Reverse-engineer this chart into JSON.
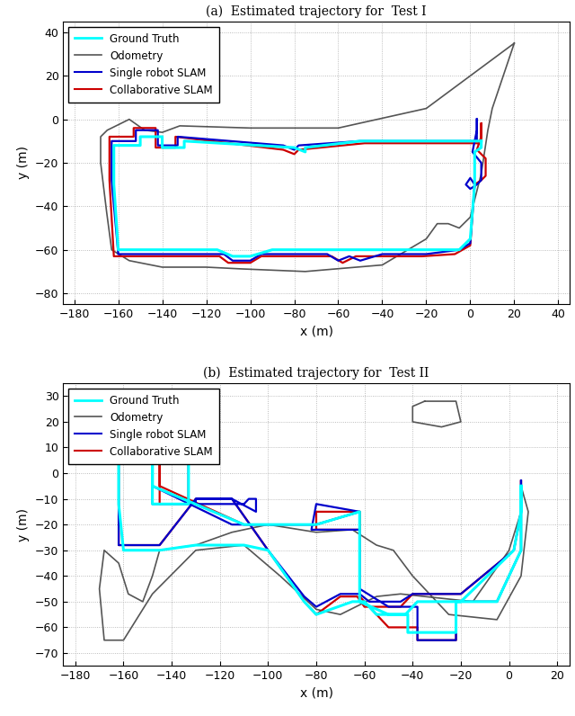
{
  "subplot1": {
    "title": "(a)  Estimated trajectory for  Test I",
    "xlim": [
      -185,
      45
    ],
    "ylim": [
      -85,
      45
    ],
    "xticks": [
      -180,
      -160,
      -140,
      -120,
      -100,
      -80,
      -60,
      -40,
      -20,
      0,
      20,
      40
    ],
    "yticks": [
      -80,
      -60,
      -40,
      -20,
      0,
      20,
      40
    ],
    "xlabel": "x (m)",
    "ylabel": "y (m)"
  },
  "subplot2": {
    "title": "(b)  Estimated trajectory for  Test II",
    "xlim": [
      -185,
      25
    ],
    "ylim": [
      -75,
      35
    ],
    "xticks": [
      -180,
      -160,
      -140,
      -120,
      -100,
      -80,
      -60,
      -40,
      -20,
      0,
      20
    ],
    "yticks": [
      -70,
      -60,
      -50,
      -40,
      -30,
      -20,
      -10,
      0,
      10,
      20,
      30
    ],
    "xlabel": "x (m)",
    "ylabel": "y (m)"
  },
  "legend_labels": [
    "Ground Truth",
    "Odometry",
    "Single robot SLAM",
    "Collaborative SLAM"
  ],
  "colors": {
    "ground_truth": "#00FFFF",
    "odometry": "#555555",
    "single_slam": "#0000CC",
    "collab_slam": "#CC0000"
  },
  "linewidths": {
    "ground_truth": 2.2,
    "odometry": 1.2,
    "single_slam": 1.6,
    "collab_slam": 1.6
  }
}
